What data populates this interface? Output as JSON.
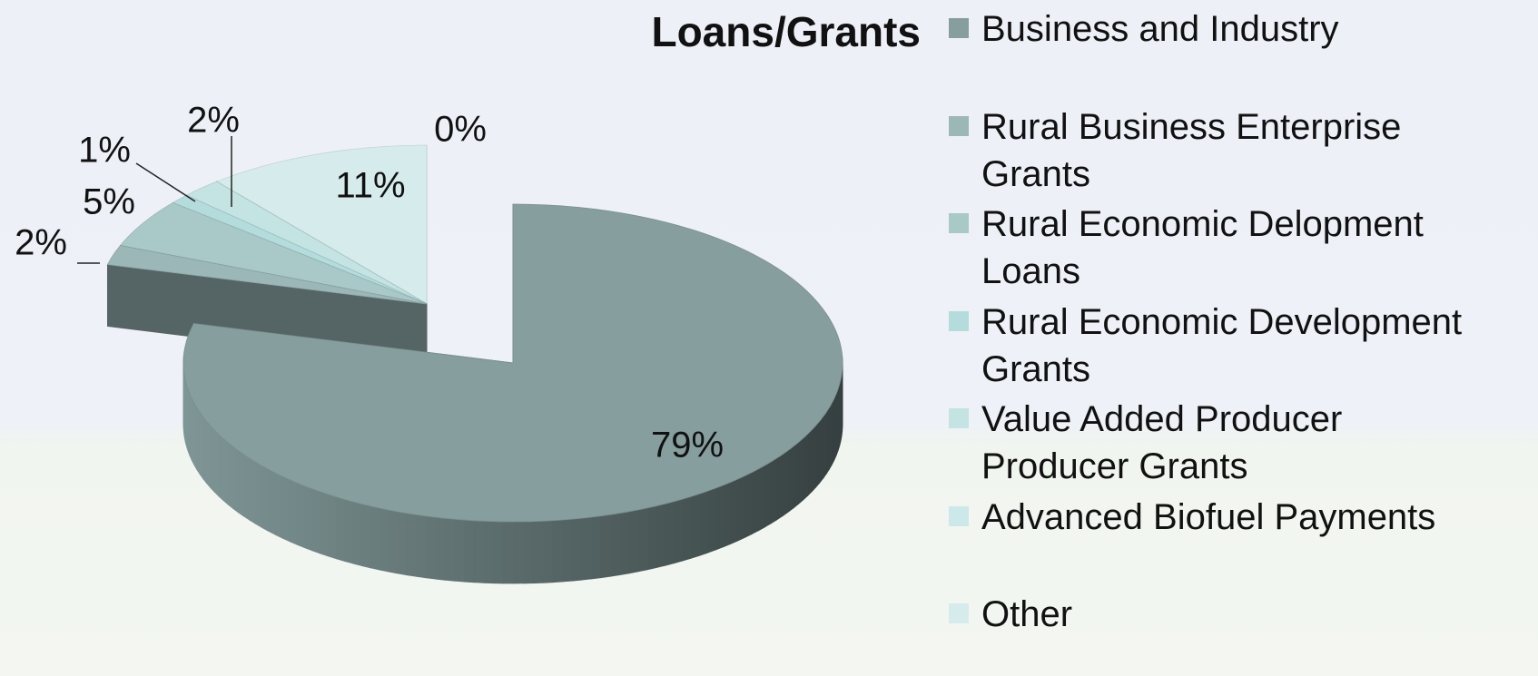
{
  "chart_data": {
    "type": "pie",
    "title": "Loans/Grants",
    "categories": [
      "Business and Industry",
      "Rural Business Enterprise Grants",
      "Rural Economic Delopment Loans",
      "Rural Economic Development Grants",
      "Value Added Producer Producer Grants",
      "Advanced Biofuel Payments",
      "Other"
    ],
    "values": [
      79,
      2,
      5,
      1,
      2,
      0,
      11
    ],
    "value_labels": [
      "79%",
      "2%",
      "5%",
      "1%",
      "2%",
      "0%",
      "11%"
    ],
    "colors": [
      "#869e9e",
      "#9bb7b7",
      "#a9c9c9",
      "#b5dcdc",
      "#c4e3e3",
      "#cde8e8",
      "#d6ecec"
    ],
    "legend": "right"
  }
}
